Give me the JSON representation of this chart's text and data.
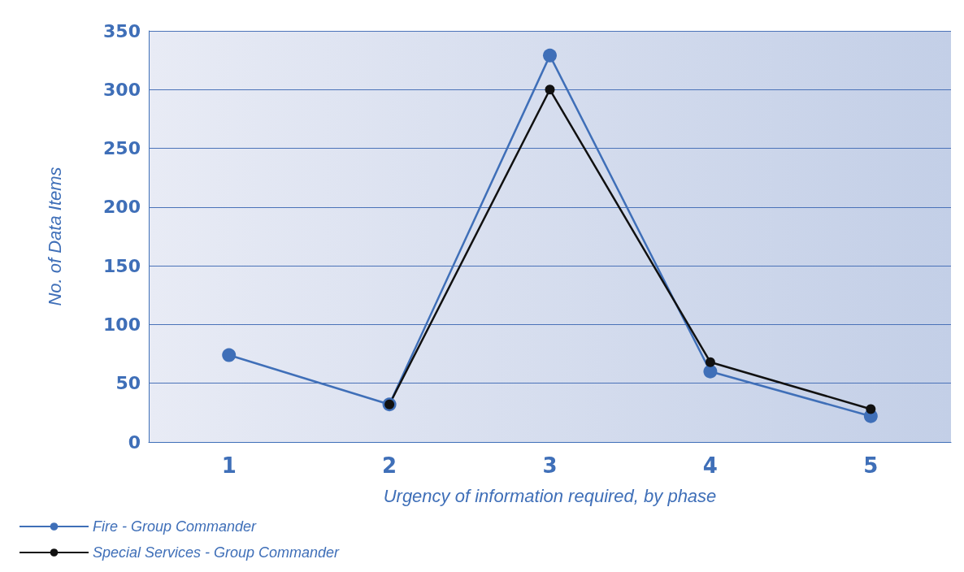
{
  "chart_data": {
    "type": "line",
    "xlabel": "Urgency of information required, by phase",
    "ylabel": "No. of Data Items",
    "categories": [
      "1",
      "2",
      "3",
      "4",
      "5"
    ],
    "series": [
      {
        "name": "Fire - Group Commander",
        "color": "#3f6fb8",
        "values": [
          74,
          32,
          329,
          60,
          22
        ]
      },
      {
        "name": "Special Services - Group Commander",
        "color": "#111111",
        "values": [
          null,
          32,
          300,
          68,
          28
        ]
      }
    ],
    "ylim": [
      0,
      350
    ],
    "yticks": [
      0,
      50,
      100,
      150,
      200,
      250,
      300,
      350
    ],
    "grid": "y",
    "legend": "bottom left",
    "marker": "circle",
    "line_style": "solid"
  }
}
